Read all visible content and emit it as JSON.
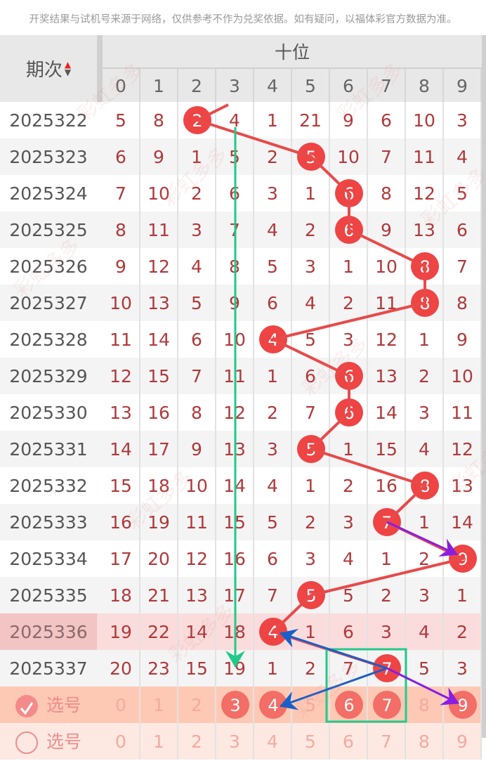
{
  "notice": "开奖结果与试机号来源于网络，仅供参考不作为兑奖依据。如有疑问，以福体彩官方数据为准。",
  "header": {
    "period_label": "期次",
    "sort_up": "▲",
    "sort_down": "▼",
    "group_label": "十位",
    "digits": [
      "0",
      "1",
      "2",
      "3",
      "4",
      "5",
      "6",
      "7",
      "8",
      "9"
    ]
  },
  "colors": {
    "ball": "#ee4444",
    "line": "#e84a4a",
    "green": "#22c98a",
    "purple": "#8a1ee0",
    "blue": "#1a5fc8",
    "highlight_row": "#fbdcdc",
    "select_row": "#fdc9b5"
  },
  "rows": [
    {
      "period": "2025322",
      "cells": [
        "5",
        "8",
        "2",
        "4",
        "1",
        "21",
        "9",
        "6",
        "10",
        "3"
      ],
      "hit": 2
    },
    {
      "period": "2025323",
      "cells": [
        "6",
        "9",
        "1",
        "5",
        "2",
        "5",
        "10",
        "7",
        "11",
        "4"
      ],
      "hit": 5
    },
    {
      "period": "2025324",
      "cells": [
        "7",
        "10",
        "2",
        "6",
        "3",
        "1",
        "6",
        "8",
        "12",
        "5"
      ],
      "hit": 6
    },
    {
      "period": "2025325",
      "cells": [
        "8",
        "11",
        "3",
        "7",
        "4",
        "2",
        "6",
        "9",
        "13",
        "6"
      ],
      "hit": 6
    },
    {
      "period": "2025326",
      "cells": [
        "9",
        "12",
        "4",
        "8",
        "5",
        "3",
        "1",
        "10",
        "8",
        "7"
      ],
      "hit": 8
    },
    {
      "period": "2025327",
      "cells": [
        "10",
        "13",
        "5",
        "9",
        "6",
        "4",
        "2",
        "11",
        "8",
        "8"
      ],
      "hit": 8
    },
    {
      "period": "2025328",
      "cells": [
        "11",
        "14",
        "6",
        "10",
        "4",
        "5",
        "3",
        "12",
        "1",
        "9"
      ],
      "hit": 4
    },
    {
      "period": "2025329",
      "cells": [
        "12",
        "15",
        "7",
        "11",
        "1",
        "6",
        "6",
        "13",
        "2",
        "10"
      ],
      "hit": 6
    },
    {
      "period": "2025330",
      "cells": [
        "13",
        "16",
        "8",
        "12",
        "2",
        "7",
        "6",
        "14",
        "3",
        "11"
      ],
      "hit": 6
    },
    {
      "period": "2025331",
      "cells": [
        "14",
        "17",
        "9",
        "13",
        "3",
        "5",
        "1",
        "15",
        "4",
        "12"
      ],
      "hit": 5
    },
    {
      "period": "2025332",
      "cells": [
        "15",
        "18",
        "10",
        "14",
        "4",
        "1",
        "2",
        "16",
        "8",
        "13"
      ],
      "hit": 8
    },
    {
      "period": "2025333",
      "cells": [
        "16",
        "19",
        "11",
        "15",
        "5",
        "2",
        "3",
        "7",
        "1",
        "14"
      ],
      "hit": 7
    },
    {
      "period": "2025334",
      "cells": [
        "17",
        "20",
        "12",
        "16",
        "6",
        "3",
        "4",
        "1",
        "2",
        "9"
      ],
      "hit": 9
    },
    {
      "period": "2025335",
      "cells": [
        "18",
        "21",
        "13",
        "17",
        "7",
        "5",
        "5",
        "2",
        "3",
        "1"
      ],
      "hit": 5
    },
    {
      "period": "2025336",
      "cells": [
        "19",
        "22",
        "14",
        "18",
        "4",
        "1",
        "6",
        "3",
        "4",
        "2"
      ],
      "hit": 4,
      "highlight": true
    },
    {
      "period": "2025337",
      "cells": [
        "20",
        "23",
        "15",
        "19",
        "1",
        "2",
        "7",
        "7",
        "5",
        "3"
      ],
      "hit": 7
    }
  ],
  "select_rows": [
    {
      "label": "选号",
      "checked": true,
      "cells": [
        "0",
        "1",
        "2",
        "3",
        "4",
        "5",
        "6",
        "7",
        "8",
        "9"
      ],
      "selected": [
        3,
        4,
        6,
        7,
        9
      ]
    },
    {
      "label": "选号",
      "checked": false,
      "cells": [
        "0",
        "1",
        "2",
        "3",
        "4",
        "5",
        "6",
        "7",
        "8",
        "9"
      ],
      "selected": []
    }
  ],
  "watermark": "彩虹多多"
}
